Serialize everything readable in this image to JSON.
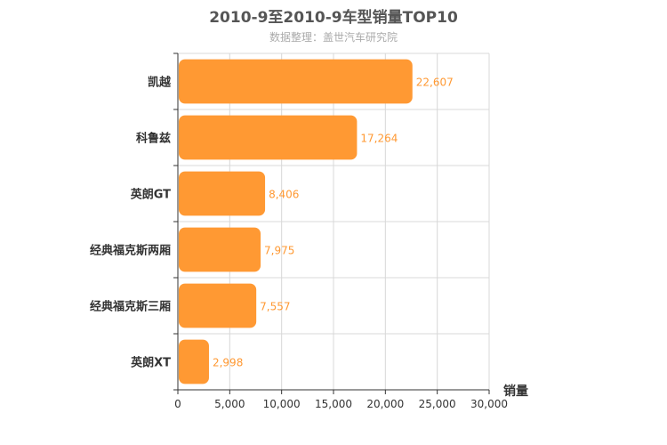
{
  "chart_data": {
    "type": "bar",
    "orientation": "horizontal",
    "title": "2010-9至2010-9车型销量TOP10",
    "subtitle": "数据整理：盖世汽车研究院",
    "xlabel": "销量",
    "categories": [
      "凯越",
      "科鲁兹",
      "英朗GT",
      "经典福克斯两厢",
      "经典福克斯三厢",
      "英朗XT"
    ],
    "values": [
      22607,
      17264,
      8406,
      7975,
      7557,
      2998
    ],
    "value_labels": [
      "22,607",
      "17,264",
      "8,406",
      "7,975",
      "7,557",
      "2,998"
    ],
    "xlim": [
      0,
      30000
    ],
    "xticks": [
      0,
      5000,
      10000,
      15000,
      20000,
      25000,
      30000
    ],
    "xtick_labels": [
      "0",
      "5,000",
      "10,000",
      "15,000",
      "20,000",
      "25,000",
      "30,000"
    ],
    "bar_color": "#ff9933",
    "label_color": "#ff9933",
    "grid": true,
    "legend": false
  }
}
